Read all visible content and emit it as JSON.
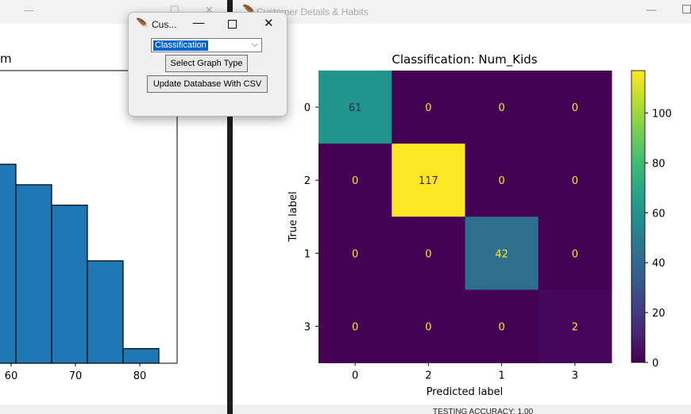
{
  "colors": {
    "bar_fill": "#1f77b4",
    "viridis_low": "#440154",
    "viridis_high": "#fde725",
    "accent": "#0064d2"
  },
  "popup": {
    "title": "Cus...",
    "icon": "feather-icon",
    "select_value": "Classification",
    "select_graph_label": "Select Graph Type",
    "update_db_label": "Update Database With CSV"
  },
  "left_window": {
    "title_fragment": "m",
    "chart_data": {
      "type": "bar",
      "categories": [
        "55–60",
        "60–66",
        "66–72",
        "72–77",
        "77–83"
      ],
      "values": [
        0.68,
        0.61,
        0.54,
        0.35,
        0.05
      ],
      "xticks": [
        "60",
        "70",
        "80"
      ],
      "xlim": [
        54,
        89
      ],
      "ylim": [
        0,
        1
      ]
    }
  },
  "right_window": {
    "title": "Customer Details & Habits",
    "icon": "feather-icon",
    "accuracy_text": "TESTING ACCURACY: 1.00",
    "chart_data": {
      "type": "heatmap",
      "title": "Classification: Num_Kids",
      "xlabel": "Predicted label",
      "ylabel": "True label",
      "x_labels": [
        "0",
        "2",
        "1",
        "3"
      ],
      "y_labels": [
        "0",
        "2",
        "1",
        "3"
      ],
      "matrix": [
        [
          61,
          0,
          0,
          0
        ],
        [
          0,
          117,
          0,
          0
        ],
        [
          0,
          0,
          42,
          0
        ],
        [
          0,
          0,
          0,
          2
        ]
      ],
      "vmin": 0,
      "vmax": 117,
      "colorbar_ticks": [
        0,
        20,
        40,
        60,
        80,
        100
      ],
      "colormap": "viridis"
    }
  }
}
